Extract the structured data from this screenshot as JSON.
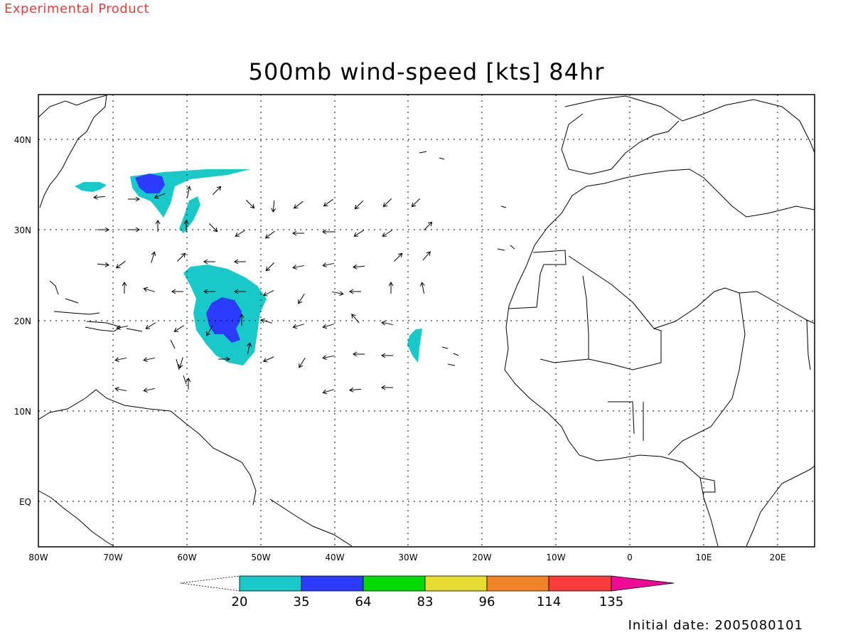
{
  "header": {
    "product_label": "Experimental Product",
    "title": "500mb wind-speed [kts] 84hr",
    "initial_date": "Initial date: 2005080101"
  },
  "map": {
    "lon_ticks": [
      "80W",
      "70W",
      "60W",
      "50W",
      "40W",
      "30W",
      "20W",
      "10W",
      "0",
      "10E",
      "20E"
    ],
    "lat_ticks": [
      "40N",
      "30N",
      "20N",
      "10N",
      "EQ"
    ],
    "lon_range": [
      -80,
      25
    ],
    "lat_range": [
      -5,
      45
    ],
    "grid": "dotted",
    "land_outline_color": "#000000"
  },
  "colorbar": {
    "levels": [
      "20",
      "35",
      "64",
      "83",
      "96",
      "114",
      "135"
    ],
    "colors": [
      "#19c8c8",
      "#2b3cff",
      "#00dc00",
      "#e6dc32",
      "#f08228",
      "#fa3c3c",
      "#f00a96"
    ],
    "below_lowest": "white"
  }
}
